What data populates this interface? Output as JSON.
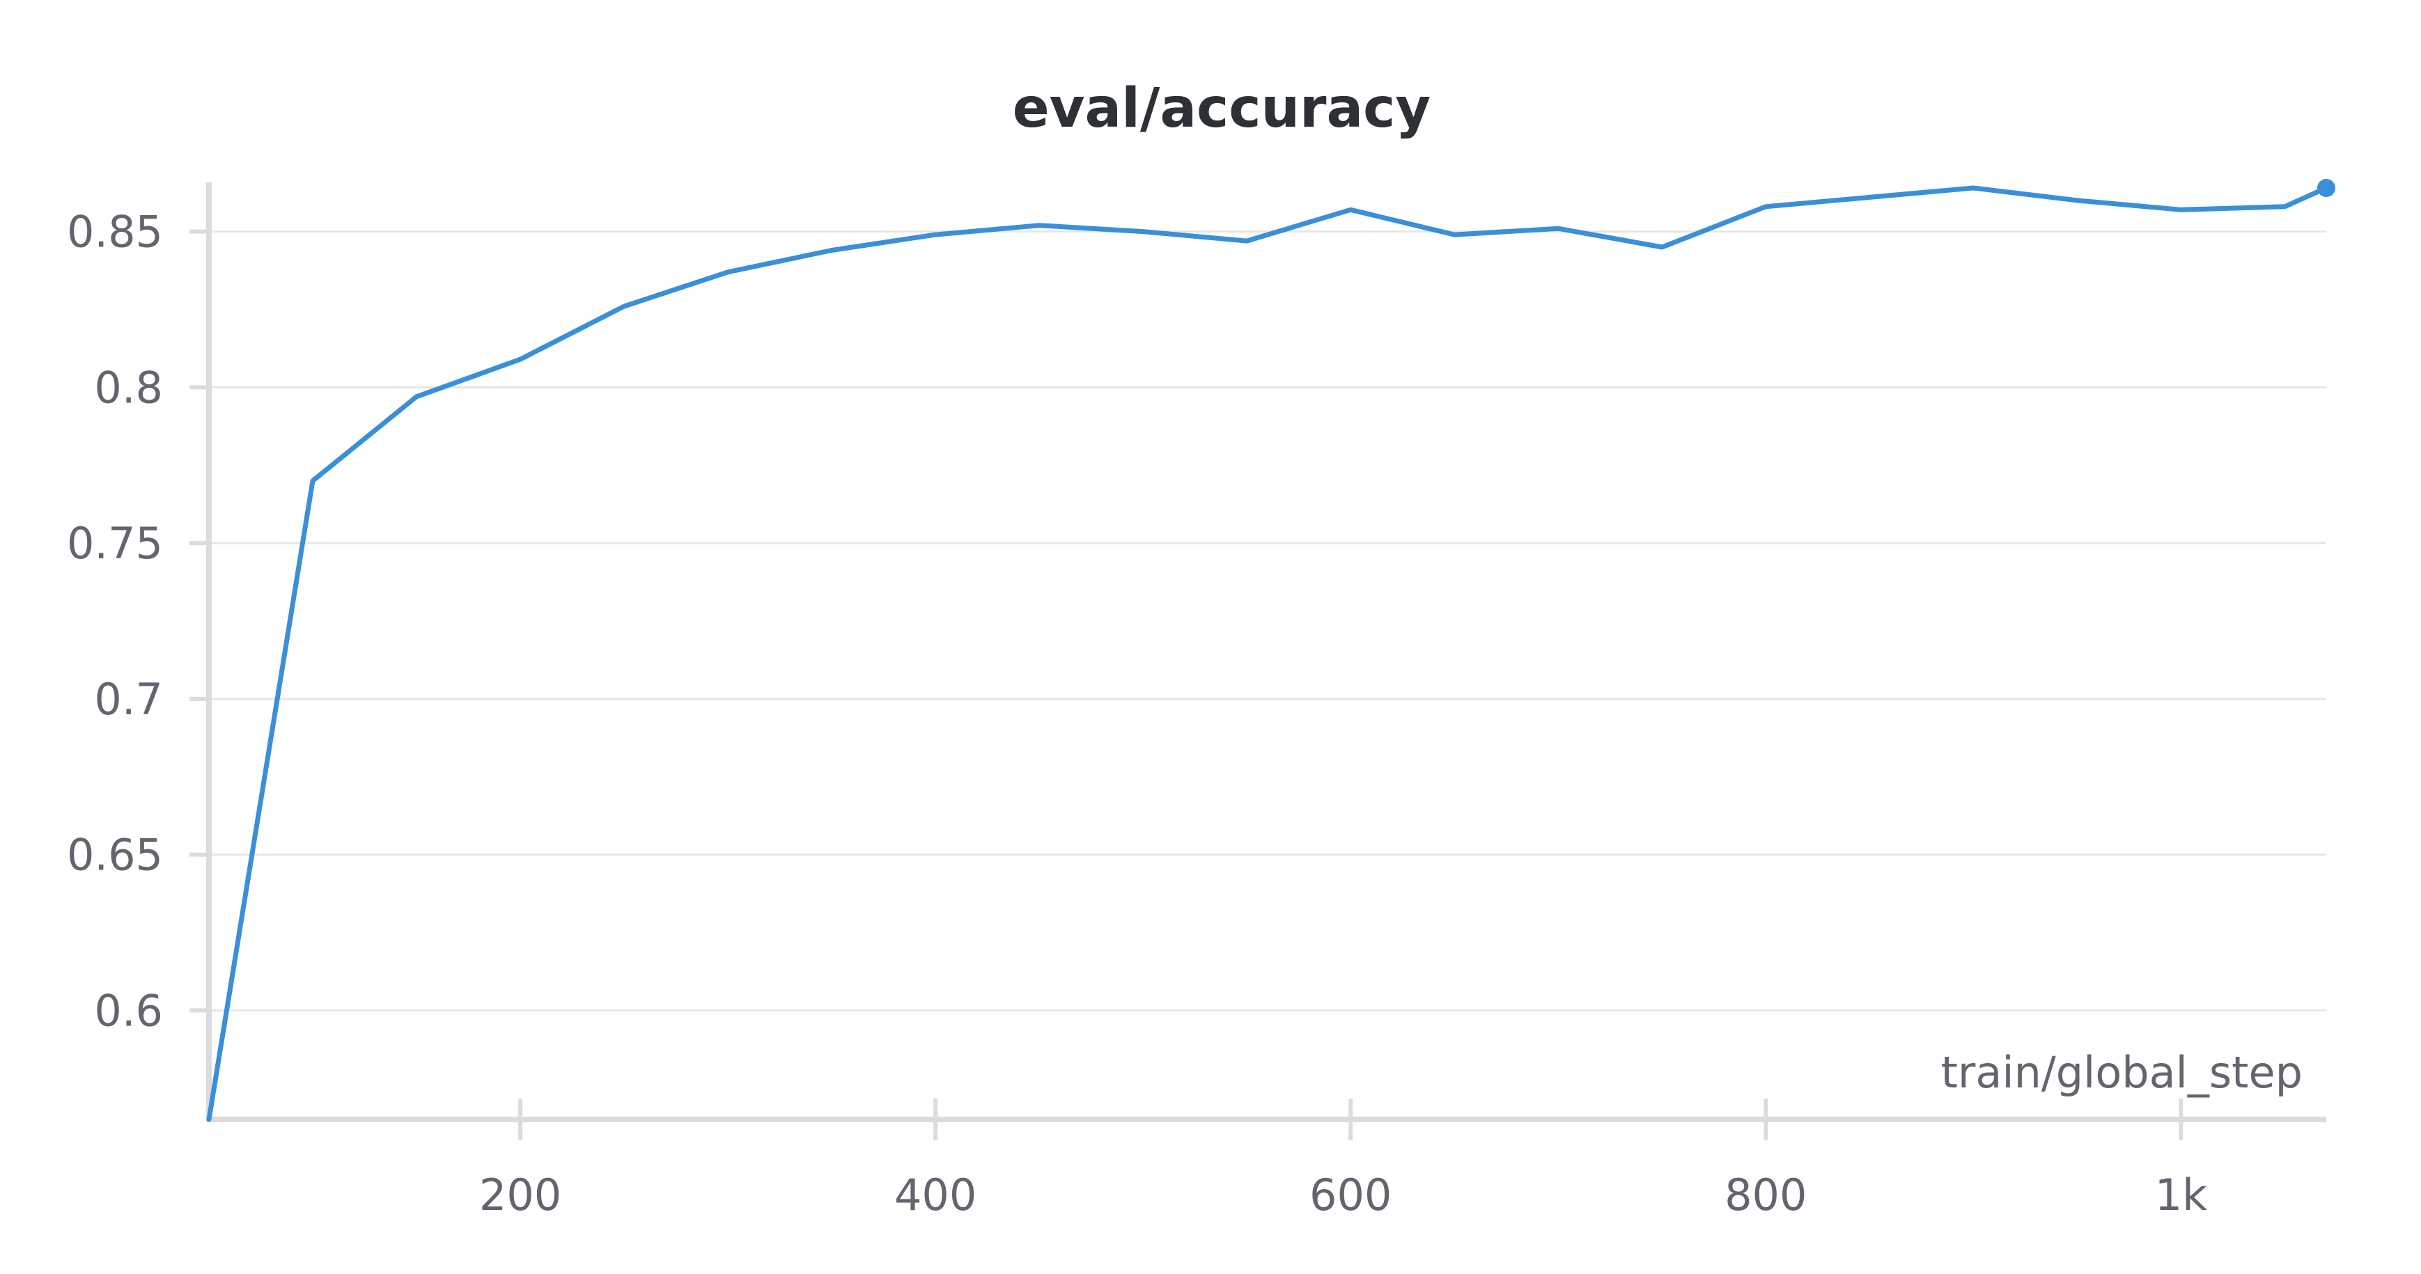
{
  "chart_data": {
    "type": "line",
    "title": "eval/accuracy",
    "xlabel": "train/global_step",
    "ylabel": "",
    "xlim": [
      50,
      1070
    ],
    "ylim": [
      0.565,
      0.864
    ],
    "x_ticks": [
      200,
      400,
      600,
      800,
      1000
    ],
    "x_tick_labels": [
      "200",
      "400",
      "600",
      "800",
      "1k"
    ],
    "y_ticks": [
      0.6,
      0.65,
      0.7,
      0.75,
      0.8,
      0.85
    ],
    "y_tick_labels": [
      "0.6",
      "0.65",
      "0.7",
      "0.75",
      "0.8",
      "0.85"
    ],
    "grid": true,
    "series": [
      {
        "color": "#3a8fd9",
        "x": [
          50,
          100,
          150,
          200,
          250,
          300,
          350,
          400,
          450,
          500,
          550,
          600,
          650,
          700,
          750,
          800,
          850,
          900,
          950,
          1000,
          1050,
          1070
        ],
        "y": [
          0.565,
          0.77,
          0.797,
          0.809,
          0.826,
          0.837,
          0.844,
          0.849,
          0.852,
          0.85,
          0.847,
          0.857,
          0.849,
          0.851,
          0.845,
          0.858,
          0.861,
          0.864,
          0.86,
          0.857,
          0.858,
          0.864
        ]
      }
    ]
  }
}
